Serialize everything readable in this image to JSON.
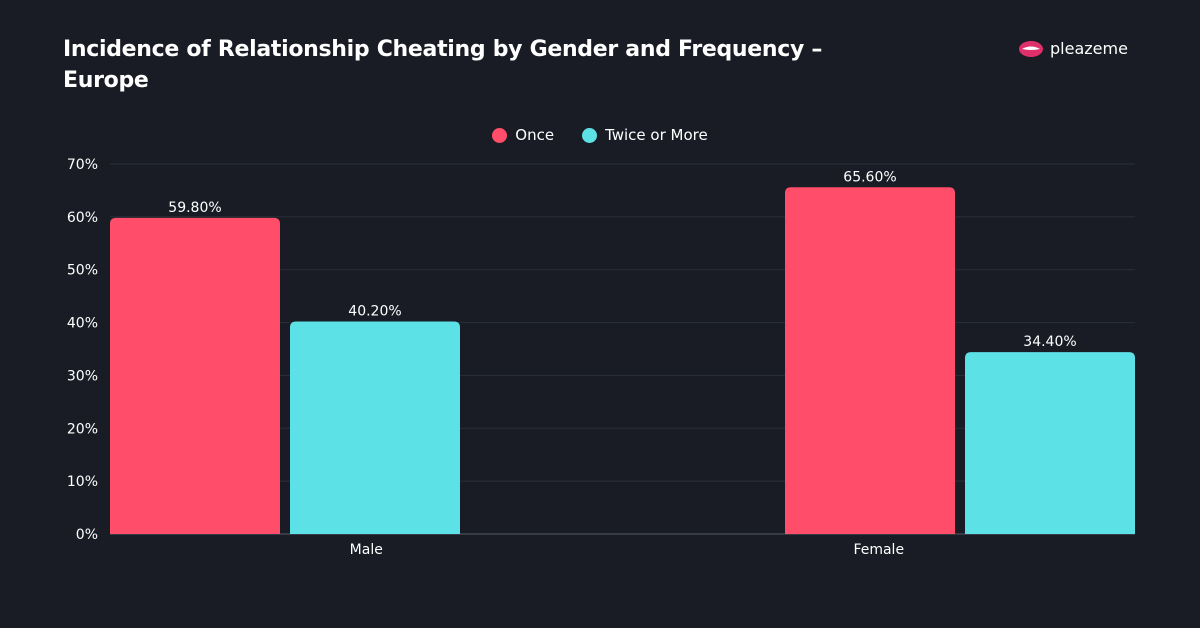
{
  "title": "Incidence of Relationship Cheating by Gender and Frequency – Europe",
  "brand": {
    "name": "pleazeme",
    "logo_icon": "lips-icon"
  },
  "chart_data": {
    "type": "bar",
    "title": "Incidence of Relationship Cheating by Gender and Frequency – Europe",
    "categories": [
      "Male",
      "Female"
    ],
    "series": [
      {
        "name": "Once",
        "values": [
          59.8,
          65.6
        ],
        "labels": [
          "59.80%",
          "65.60%"
        ],
        "color": "#ff4d6a"
      },
      {
        "name": "Twice or More",
        "values": [
          40.2,
          34.4
        ],
        "labels": [
          "40.20%",
          "34.40%"
        ],
        "color": "#5ce1e6"
      }
    ],
    "ylim": [
      0,
      70
    ],
    "yticks": [
      "0%",
      "10%",
      "20%",
      "30%",
      "40%",
      "50%",
      "60%",
      "70%"
    ],
    "grid": true,
    "legend": "top-center",
    "xlabel": "",
    "ylabel": ""
  }
}
